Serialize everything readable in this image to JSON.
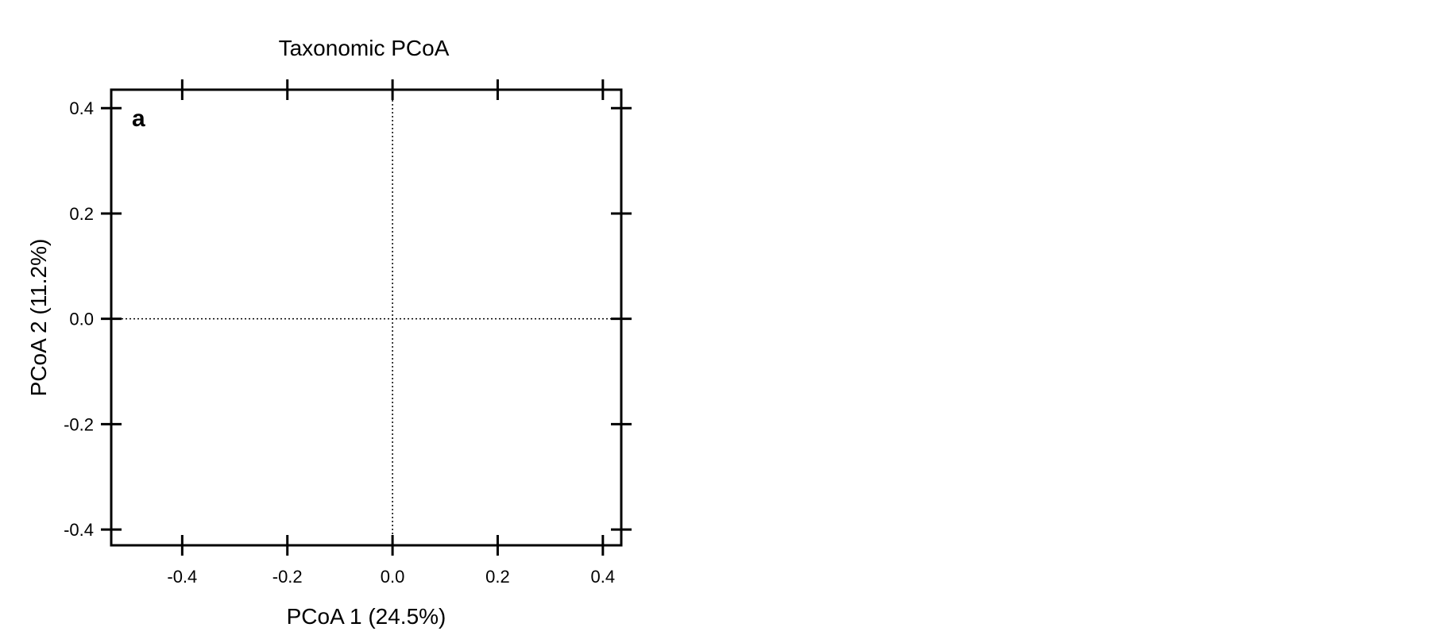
{
  "chart_data": {
    "type": "scatter",
    "title": "Taxonomic PCoA",
    "panel_label": "a",
    "xlabel": "PCoA 1 (24.5%)",
    "ylabel": "PCoA 2 (11.2%)",
    "xlim": [
      -0.535,
      0.435
    ],
    "ylim": [
      -0.43,
      0.435
    ],
    "x_ticks": [
      -0.4,
      -0.2,
      0.0,
      0.2,
      0.4
    ],
    "x_tick_labels": [
      "-0.4",
      "-0.2",
      "0.0",
      "0.2",
      "0.4"
    ],
    "y_ticks": [
      0.4,
      0.2,
      0.0,
      -0.2,
      -0.4
    ],
    "y_tick_labels": [
      "0.4",
      "0.2",
      "0.0",
      "-0.2",
      "-0.4"
    ],
    "reference_lines": {
      "x": 0.0,
      "y": 0.0,
      "style": "dotted"
    },
    "grid": false,
    "series": [],
    "colors": {
      "axis": "#000000",
      "background": "#ffffff"
    }
  }
}
